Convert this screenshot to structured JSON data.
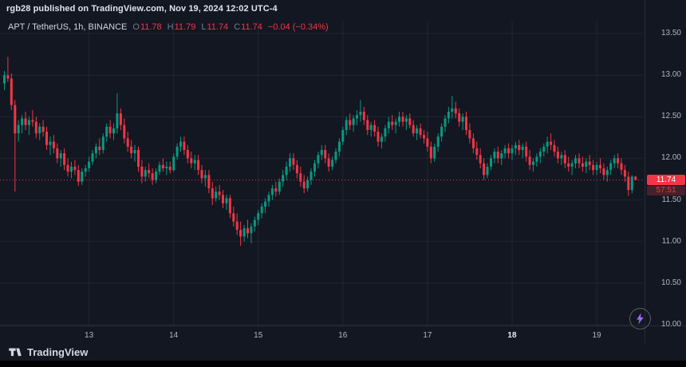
{
  "header": {
    "attribution": "rgb28 published on TradingView.com, Nov 19, 2024 12:02 UTC-4"
  },
  "legend": {
    "symbol": "APT / TetherUS, 1h, BINANCE",
    "open_label": "O",
    "open": "11.78",
    "high_label": "H",
    "high": "11.79",
    "low_label": "L",
    "low": "11.74",
    "close_label": "C",
    "close": "11.74",
    "change": "−0.04 (−0.34%)"
  },
  "price_scale": {
    "tick_labels": [
      "13.50",
      "13.00",
      "12.50",
      "12.00",
      "11.50",
      "11.00",
      "10.50",
      "10.00"
    ],
    "last_price_label": "11.74",
    "countdown": "57:51"
  },
  "time_scale": {
    "labels": [
      {
        "text": "13",
        "candle": 24,
        "bold": false
      },
      {
        "text": "14",
        "candle": 48,
        "bold": false
      },
      {
        "text": "15",
        "candle": 72,
        "bold": false
      },
      {
        "text": "16",
        "candle": 96,
        "bold": false
      },
      {
        "text": "17",
        "candle": 120,
        "bold": false
      },
      {
        "text": "18",
        "candle": 144,
        "bold": true
      },
      {
        "text": "19",
        "candle": 168,
        "bold": false
      }
    ]
  },
  "footer": {
    "brand": "TradingView"
  },
  "colors": {
    "up": "#089981",
    "down": "#f23645",
    "grid": "rgba(134,137,147,0.12)",
    "axis_text": "#b2b5be",
    "bg": "#131722",
    "accent_red": "#f23645"
  },
  "chart_data": {
    "type": "candlestick",
    "symbol": "APT/TetherUS",
    "interval": "1h",
    "exchange": "BINANCE",
    "price_axis": {
      "min": 10.0,
      "max": 13.5,
      "step": 0.5
    },
    "last_price": 11.74,
    "ohlc_legend": {
      "open": 11.78,
      "high": 11.79,
      "low": 11.74,
      "close": 11.74,
      "change": -0.04,
      "change_pct": -0.34
    },
    "candles": [
      [
        12.9,
        13.05,
        12.82,
        13.0
      ],
      [
        13.0,
        13.22,
        12.92,
        12.96
      ],
      [
        12.96,
        13.02,
        12.58,
        12.64
      ],
      [
        12.64,
        12.7,
        11.6,
        12.3
      ],
      [
        12.3,
        12.46,
        12.2,
        12.4
      ],
      [
        12.4,
        12.52,
        12.3,
        12.48
      ],
      [
        12.48,
        12.56,
        12.34,
        12.4
      ],
      [
        12.4,
        12.5,
        12.28,
        12.46
      ],
      [
        12.46,
        12.58,
        12.38,
        12.44
      ],
      [
        12.44,
        12.5,
        12.24,
        12.3
      ],
      [
        12.3,
        12.42,
        12.22,
        12.38
      ],
      [
        12.38,
        12.46,
        12.26,
        12.32
      ],
      [
        12.32,
        12.38,
        12.1,
        12.16
      ],
      [
        12.16,
        12.26,
        12.04,
        12.2
      ],
      [
        12.2,
        12.28,
        12.06,
        12.12
      ],
      [
        12.12,
        12.18,
        11.94,
        12.0
      ],
      [
        12.0,
        12.1,
        11.9,
        12.06
      ],
      [
        12.06,
        12.12,
        11.86,
        11.92
      ],
      [
        11.92,
        12.0,
        11.78,
        11.84
      ],
      [
        11.84,
        11.96,
        11.76,
        11.9
      ],
      [
        11.9,
        11.98,
        11.8,
        11.86
      ],
      [
        11.86,
        11.92,
        11.67,
        11.72
      ],
      [
        11.72,
        11.88,
        11.68,
        11.84
      ],
      [
        11.84,
        11.92,
        11.78,
        11.88
      ],
      [
        11.88,
        12.02,
        11.84,
        11.96
      ],
      [
        11.96,
        12.1,
        11.92,
        12.06
      ],
      [
        12.06,
        12.18,
        12.0,
        12.14
      ],
      [
        12.14,
        12.24,
        12.04,
        12.1
      ],
      [
        12.1,
        12.3,
        12.06,
        12.26
      ],
      [
        12.26,
        12.42,
        12.2,
        12.38
      ],
      [
        12.38,
        12.46,
        12.24,
        12.3
      ],
      [
        12.3,
        12.42,
        12.22,
        12.36
      ],
      [
        12.36,
        12.78,
        12.3,
        12.54
      ],
      [
        12.54,
        12.6,
        12.34,
        12.4
      ],
      [
        12.4,
        12.48,
        12.18,
        12.24
      ],
      [
        12.24,
        12.32,
        12.08,
        12.14
      ],
      [
        12.14,
        12.22,
        12.0,
        12.06
      ],
      [
        12.06,
        12.16,
        11.96,
        12.1
      ],
      [
        12.1,
        12.14,
        11.84,
        11.9
      ],
      [
        11.9,
        11.98,
        11.7,
        11.78
      ],
      [
        11.78,
        11.9,
        11.72,
        11.86
      ],
      [
        11.86,
        11.94,
        11.76,
        11.82
      ],
      [
        11.82,
        11.88,
        11.68,
        11.74
      ],
      [
        11.74,
        11.88,
        11.7,
        11.84
      ],
      [
        11.84,
        11.96,
        11.8,
        11.92
      ],
      [
        11.92,
        12.0,
        11.84,
        11.88
      ],
      [
        11.88,
        11.96,
        11.8,
        11.9
      ],
      [
        11.9,
        11.96,
        11.82,
        11.86
      ],
      [
        11.86,
        12.06,
        11.84,
        12.02
      ],
      [
        12.02,
        12.18,
        11.98,
        12.14
      ],
      [
        12.14,
        12.26,
        12.08,
        12.2
      ],
      [
        12.2,
        12.26,
        12.04,
        12.1
      ],
      [
        12.1,
        12.16,
        11.94,
        12.0
      ],
      [
        12.0,
        12.08,
        11.88,
        11.94
      ],
      [
        11.94,
        12.04,
        11.86,
        11.98
      ],
      [
        11.98,
        12.04,
        11.8,
        11.86
      ],
      [
        11.86,
        11.92,
        11.7,
        11.76
      ],
      [
        11.76,
        11.86,
        11.66,
        11.8
      ],
      [
        11.8,
        11.86,
        11.58,
        11.64
      ],
      [
        11.64,
        11.72,
        11.44,
        11.52
      ],
      [
        11.52,
        11.66,
        11.48,
        11.6
      ],
      [
        11.6,
        11.68,
        11.5,
        11.56
      ],
      [
        11.56,
        11.62,
        11.4,
        11.46
      ],
      [
        11.46,
        11.56,
        11.38,
        11.52
      ],
      [
        11.52,
        11.56,
        11.28,
        11.34
      ],
      [
        11.34,
        11.42,
        11.18,
        11.24
      ],
      [
        11.24,
        11.34,
        11.08,
        11.14
      ],
      [
        11.14,
        11.24,
        10.95,
        11.06
      ],
      [
        11.06,
        11.2,
        11.0,
        11.16
      ],
      [
        11.16,
        11.26,
        11.04,
        11.1
      ],
      [
        11.1,
        11.22,
        10.98,
        11.18
      ],
      [
        11.18,
        11.3,
        11.12,
        11.26
      ],
      [
        11.26,
        11.38,
        11.2,
        11.34
      ],
      [
        11.34,
        11.46,
        11.28,
        11.42
      ],
      [
        11.42,
        11.52,
        11.34,
        11.48
      ],
      [
        11.48,
        11.6,
        11.42,
        11.56
      ],
      [
        11.56,
        11.68,
        11.5,
        11.64
      ],
      [
        11.64,
        11.72,
        11.54,
        11.6
      ],
      [
        11.6,
        11.76,
        11.56,
        11.72
      ],
      [
        11.72,
        11.86,
        11.66,
        11.8
      ],
      [
        11.8,
        11.96,
        11.74,
        11.9
      ],
      [
        11.9,
        12.06,
        11.84,
        12.0
      ],
      [
        12.0,
        12.06,
        11.86,
        11.92
      ],
      [
        11.92,
        11.98,
        11.76,
        11.82
      ],
      [
        11.82,
        11.9,
        11.66,
        11.72
      ],
      [
        11.72,
        11.8,
        11.58,
        11.64
      ],
      [
        11.64,
        11.78,
        11.6,
        11.74
      ],
      [
        11.74,
        11.88,
        11.68,
        11.84
      ],
      [
        11.84,
        11.98,
        11.78,
        11.94
      ],
      [
        11.94,
        12.08,
        11.88,
        12.04
      ],
      [
        12.04,
        12.16,
        11.98,
        12.1
      ],
      [
        12.1,
        12.16,
        11.94,
        12.0
      ],
      [
        12.0,
        12.06,
        11.84,
        11.9
      ],
      [
        11.9,
        12.02,
        11.86,
        11.98
      ],
      [
        11.98,
        12.12,
        11.94,
        12.08
      ],
      [
        12.08,
        12.24,
        12.02,
        12.2
      ],
      [
        12.2,
        12.38,
        12.16,
        12.34
      ],
      [
        12.34,
        12.5,
        12.28,
        12.46
      ],
      [
        12.46,
        12.54,
        12.34,
        12.4
      ],
      [
        12.4,
        12.52,
        12.32,
        12.48
      ],
      [
        12.48,
        12.58,
        12.4,
        12.52
      ],
      [
        12.52,
        12.7,
        12.44,
        12.56
      ],
      [
        12.56,
        12.62,
        12.4,
        12.46
      ],
      [
        12.46,
        12.52,
        12.28,
        12.34
      ],
      [
        12.34,
        12.44,
        12.26,
        12.4
      ],
      [
        12.4,
        12.46,
        12.26,
        12.32
      ],
      [
        12.32,
        12.38,
        12.14,
        12.2
      ],
      [
        12.2,
        12.3,
        12.12,
        12.26
      ],
      [
        12.26,
        12.4,
        12.2,
        12.36
      ],
      [
        12.36,
        12.5,
        12.3,
        12.44
      ],
      [
        12.44,
        12.52,
        12.34,
        12.4
      ],
      [
        12.4,
        12.48,
        12.3,
        12.44
      ],
      [
        12.44,
        12.56,
        12.38,
        12.5
      ],
      [
        12.5,
        12.56,
        12.38,
        12.44
      ],
      [
        12.44,
        12.52,
        12.34,
        12.48
      ],
      [
        12.48,
        12.54,
        12.36,
        12.4
      ],
      [
        12.4,
        12.46,
        12.26,
        12.3
      ],
      [
        12.3,
        12.4,
        12.22,
        12.36
      ],
      [
        12.36,
        12.42,
        12.24,
        12.28
      ],
      [
        12.28,
        12.34,
        12.18,
        12.24
      ],
      [
        12.24,
        12.32,
        12.08,
        12.14
      ],
      [
        12.14,
        12.2,
        11.94,
        12.0
      ],
      [
        12.0,
        12.18,
        11.96,
        12.14
      ],
      [
        12.14,
        12.3,
        12.08,
        12.26
      ],
      [
        12.26,
        12.42,
        12.2,
        12.38
      ],
      [
        12.38,
        12.52,
        12.32,
        12.48
      ],
      [
        12.48,
        12.62,
        12.42,
        12.56
      ],
      [
        12.56,
        12.75,
        12.48,
        12.6
      ],
      [
        12.6,
        12.68,
        12.48,
        12.54
      ],
      [
        12.54,
        12.6,
        12.38,
        12.44
      ],
      [
        12.44,
        12.54,
        12.34,
        12.5
      ],
      [
        12.5,
        12.56,
        12.28,
        12.34
      ],
      [
        12.34,
        12.42,
        12.18,
        12.24
      ],
      [
        12.24,
        12.3,
        12.06,
        12.12
      ],
      [
        12.12,
        12.2,
        11.98,
        12.04
      ],
      [
        12.04,
        12.12,
        11.88,
        11.94
      ],
      [
        11.94,
        12.0,
        11.74,
        11.8
      ],
      [
        11.8,
        11.94,
        11.76,
        11.9
      ],
      [
        11.9,
        12.04,
        11.86,
        12.0
      ],
      [
        12.0,
        12.12,
        11.94,
        12.08
      ],
      [
        12.08,
        12.14,
        11.94,
        12.0
      ],
      [
        12.0,
        12.1,
        11.92,
        12.06
      ],
      [
        12.06,
        12.16,
        12.0,
        12.12
      ],
      [
        12.12,
        12.18,
        12.0,
        12.06
      ],
      [
        12.06,
        12.16,
        11.98,
        12.12
      ],
      [
        12.12,
        12.2,
        12.04,
        12.16
      ],
      [
        12.16,
        12.22,
        12.04,
        12.1
      ],
      [
        12.1,
        12.18,
        12.0,
        12.14
      ],
      [
        12.14,
        12.2,
        11.96,
        12.02
      ],
      [
        12.02,
        12.1,
        11.86,
        11.92
      ],
      [
        11.92,
        12.0,
        11.84,
        11.96
      ],
      [
        11.96,
        12.06,
        11.9,
        12.02
      ],
      [
        12.02,
        12.12,
        11.94,
        12.08
      ],
      [
        12.08,
        12.18,
        12.02,
        12.14
      ],
      [
        12.14,
        12.26,
        12.06,
        12.2
      ],
      [
        12.2,
        12.3,
        12.1,
        12.16
      ],
      [
        12.16,
        12.22,
        12.02,
        12.08
      ],
      [
        12.08,
        12.14,
        11.94,
        12.0
      ],
      [
        12.0,
        12.08,
        11.92,
        12.04
      ],
      [
        12.04,
        12.1,
        11.88,
        11.94
      ],
      [
        11.94,
        12.02,
        11.84,
        11.9
      ],
      [
        11.9,
        11.98,
        11.8,
        11.94
      ],
      [
        11.94,
        12.04,
        11.88,
        12.0
      ],
      [
        12.0,
        12.06,
        11.88,
        11.94
      ],
      [
        11.94,
        12.02,
        11.84,
        11.9
      ],
      [
        11.9,
        12.0,
        11.82,
        11.96
      ],
      [
        11.96,
        12.04,
        11.86,
        11.92
      ],
      [
        11.92,
        11.98,
        11.8,
        11.86
      ],
      [
        11.86,
        11.96,
        11.8,
        11.92
      ],
      [
        11.92,
        12.0,
        11.82,
        11.88
      ],
      [
        11.88,
        11.94,
        11.74,
        11.8
      ],
      [
        11.8,
        11.9,
        11.72,
        11.86
      ],
      [
        11.86,
        11.98,
        11.8,
        11.94
      ],
      [
        11.94,
        12.04,
        11.88,
        12.0
      ],
      [
        12.0,
        12.06,
        11.88,
        11.94
      ],
      [
        11.94,
        12.0,
        11.8,
        11.86
      ],
      [
        11.86,
        11.92,
        11.72,
        11.78
      ],
      [
        11.78,
        11.84,
        11.55,
        11.62
      ],
      [
        11.62,
        11.8,
        11.58,
        11.78
      ],
      [
        11.78,
        11.79,
        11.74,
        11.74
      ]
    ]
  }
}
